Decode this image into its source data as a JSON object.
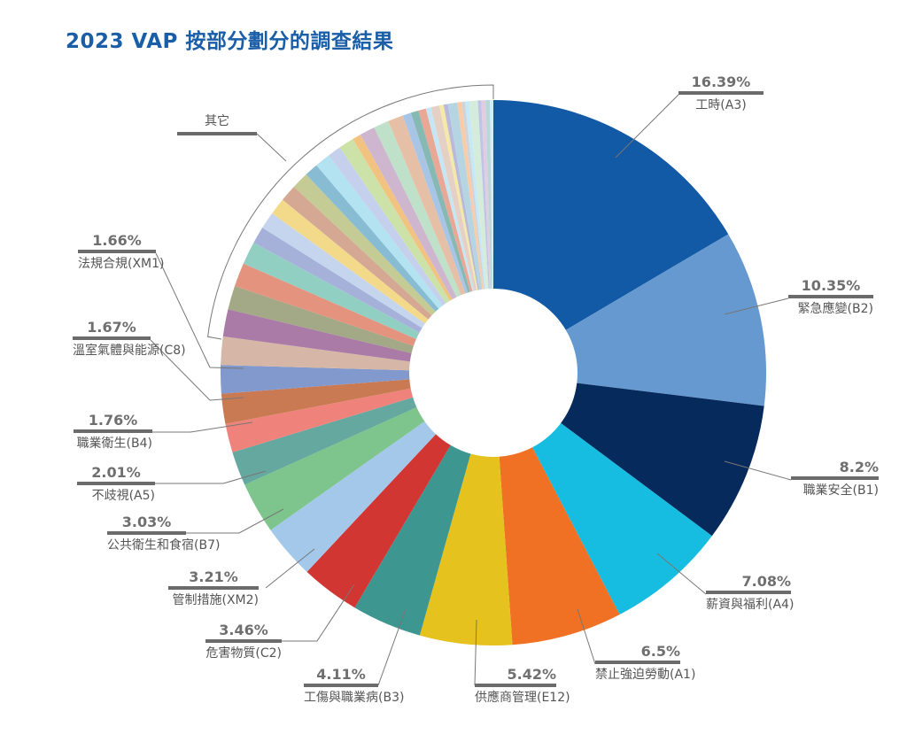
{
  "title": "2023 VAP 按部分劃分的調查結果",
  "chart_data": {
    "type": "pie",
    "variant": "donut",
    "title": "2023 VAP 按部分劃分的調查結果",
    "unit": "%",
    "start": "top",
    "direction": "clockwise",
    "others_label": "其它",
    "slices": [
      {
        "label": "工時(A3)",
        "value": 16.39,
        "color": "#1259a6"
      },
      {
        "label": "緊急應變(B2)",
        "value": 10.35,
        "color": "#6699cf"
      },
      {
        "label": "職業安全(B1)",
        "value": 8.2,
        "color": "#062a5c"
      },
      {
        "label": "薪資與福利(A4)",
        "value": 7.08,
        "color": "#17bde0"
      },
      {
        "label": "禁止強迫勞動(A1)",
        "value": 6.5,
        "color": "#f07124"
      },
      {
        "label": "供應商管理(E12)",
        "value": 5.42,
        "color": "#e5c21e"
      },
      {
        "label": "工傷與職業病(B3)",
        "value": 4.11,
        "color": "#3d9690"
      },
      {
        "label": "危害物質(C2)",
        "value": 3.46,
        "color": "#d13632"
      },
      {
        "label": "管制措施(XM2)",
        "value": 3.21,
        "color": "#a4c8ea"
      },
      {
        "label": "公共衛生和食宿(B7)",
        "value": 3.03,
        "color": "#7dc58c"
      },
      {
        "label": "不歧視(A5)",
        "value": 2.01,
        "color": "#64a8a0"
      },
      {
        "label": null,
        "value": 1.7,
        "color": "#ef837c"
      },
      {
        "label": "職業衛生(B4)",
        "value": 1.76,
        "color": "#c97a52"
      },
      {
        "label": "溫室氣體與能源(C8)",
        "value": 1.67,
        "color": "#8199cc"
      },
      {
        "label": "法規合規(XM1)",
        "value": 1.66,
        "color": "#d6b6a6"
      },
      {
        "label": null,
        "value": 1.6,
        "color": "#a97ba6"
      },
      {
        "label": null,
        "value": 1.4,
        "color": "#a3a886"
      },
      {
        "label": null,
        "value": 1.4,
        "color": "#e4947e"
      },
      {
        "label": null,
        "value": 1.35,
        "color": "#92cfc3"
      },
      {
        "label": null,
        "value": 1.0,
        "color": "#a6b1da"
      },
      {
        "label": null,
        "value": 1.0,
        "color": "#c5d5ee"
      },
      {
        "label": null,
        "value": 1.0,
        "color": "#f3da8a"
      },
      {
        "label": null,
        "value": 1.0,
        "color": "#d5a894"
      },
      {
        "label": null,
        "value": 1.0,
        "color": "#c5cb94"
      },
      {
        "label": null,
        "value": 0.8,
        "color": "#88bcd2"
      },
      {
        "label": null,
        "value": 0.9,
        "color": "#b3e3f0"
      },
      {
        "label": null,
        "value": 0.8,
        "color": "#c5d1ec"
      },
      {
        "label": null,
        "value": 0.9,
        "color": "#cde2a8"
      },
      {
        "label": null,
        "value": 0.5,
        "color": "#f2c380"
      },
      {
        "label": null,
        "value": 0.9,
        "color": "#cfb6cf"
      },
      {
        "label": null,
        "value": 0.9,
        "color": "#bfe0c9"
      },
      {
        "label": null,
        "value": 0.9,
        "color": "#e6c0a6"
      },
      {
        "label": null,
        "value": 0.5,
        "color": "#a9c5e6"
      },
      {
        "label": null,
        "value": 0.45,
        "color": "#86b8b4"
      },
      {
        "label": null,
        "value": 0.45,
        "color": "#e9a896"
      },
      {
        "label": null,
        "value": 0.3,
        "color": "#c5e7f5"
      },
      {
        "label": null,
        "value": 0.5,
        "color": "#e4d0c4"
      },
      {
        "label": null,
        "value": 0.25,
        "color": "#f6e8a8"
      },
      {
        "label": null,
        "value": 0.25,
        "color": "#b9b9d9"
      },
      {
        "label": null,
        "value": 0.55,
        "color": "#b6d5e3"
      },
      {
        "label": null,
        "value": 0.25,
        "color": "#fbcba6"
      },
      {
        "label": null,
        "value": 0.2,
        "color": "#d0d4d8"
      },
      {
        "label": null,
        "value": 0.25,
        "color": "#c6e9f5"
      },
      {
        "label": null,
        "value": 0.5,
        "color": "#d6ecda"
      },
      {
        "label": null,
        "value": 0.2,
        "color": "#c0c5e8"
      },
      {
        "label": null,
        "value": 0.25,
        "color": "#e0cde0"
      },
      {
        "label": null,
        "value": 0.25,
        "color": "#b5d9d8"
      },
      {
        "label": null,
        "value": 0.2,
        "color": "#d4eef8"
      }
    ]
  }
}
